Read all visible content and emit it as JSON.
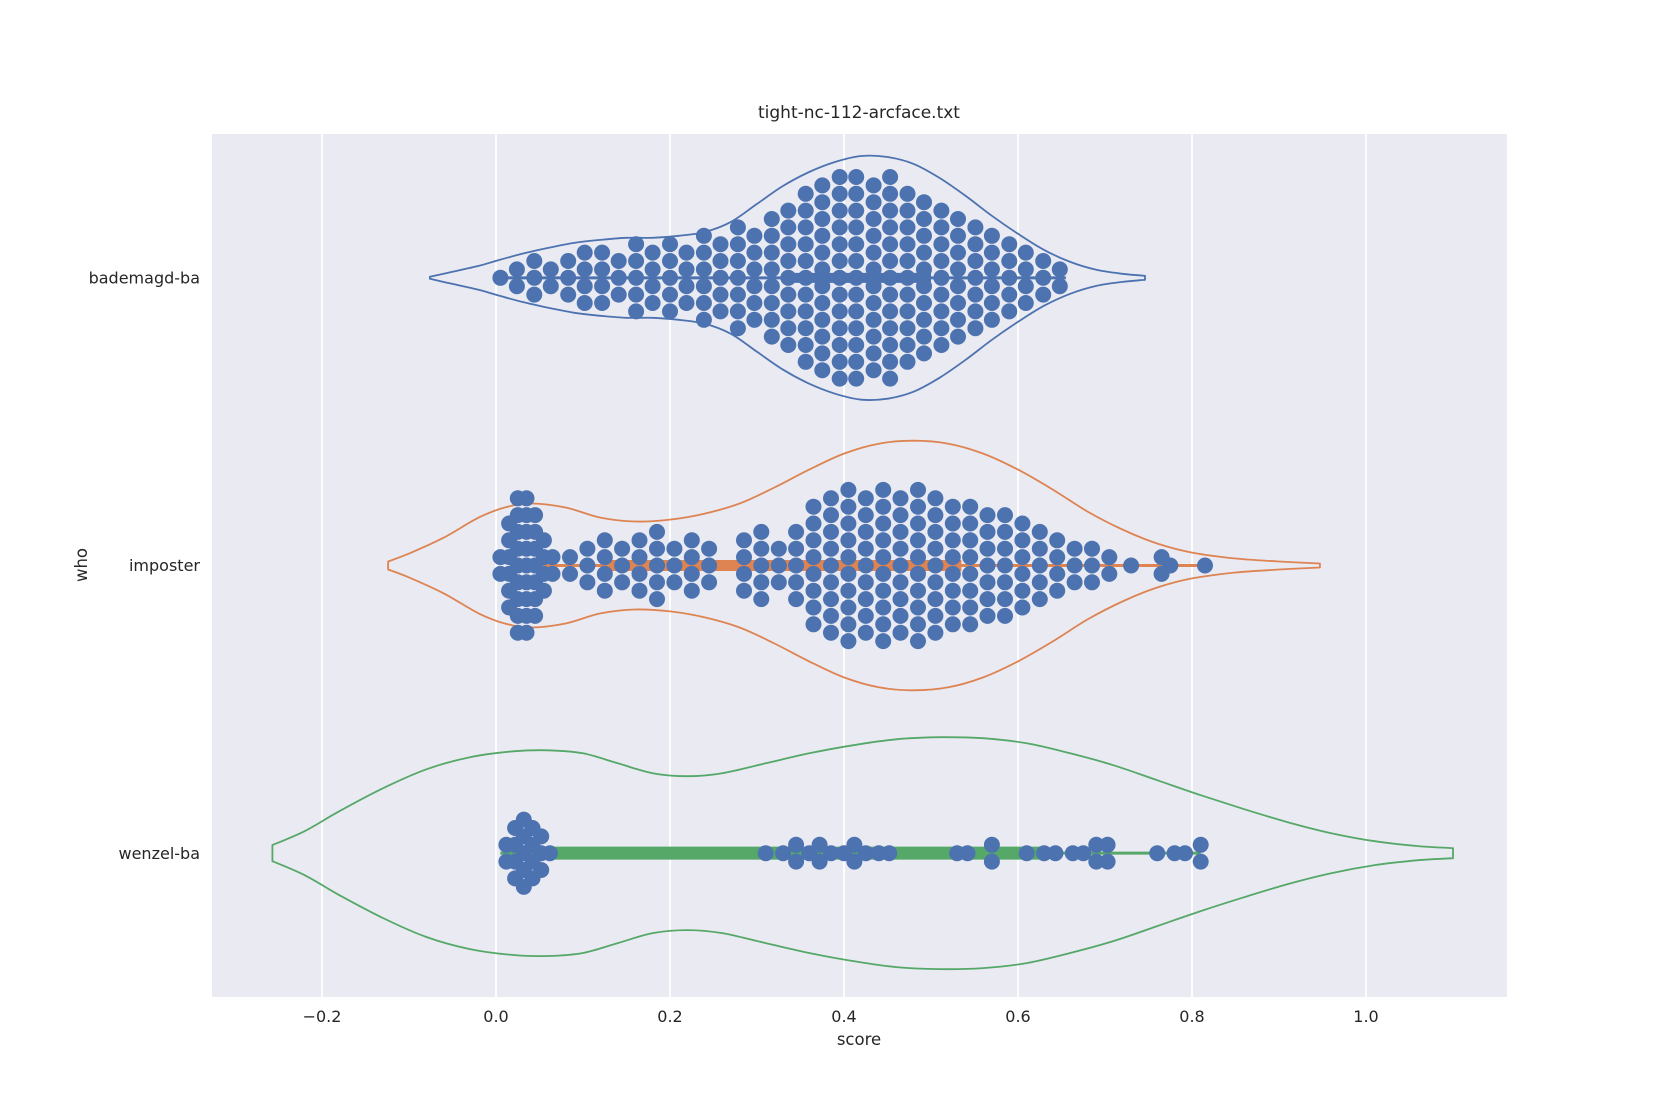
{
  "chart": {
    "title": "tight-nc-112-arcface.txt",
    "xlabel": "score",
    "ylabel": "who",
    "plot_background": "#eaeaf2",
    "grid_color": "#ffffff",
    "text_color": "#262626",
    "point_color": "#4c72b0",
    "categories": [
      "bademagd-ba",
      "imposter",
      "wenzel-ba"
    ],
    "x_ticks": [
      {
        "value": -0.2,
        "label": "−0.2"
      },
      {
        "value": 0.0,
        "label": "0.0"
      },
      {
        "value": 0.2,
        "label": "0.2"
      },
      {
        "value": 0.4,
        "label": "0.4"
      },
      {
        "value": 0.6,
        "label": "0.6"
      },
      {
        "value": 0.8,
        "label": "0.8"
      },
      {
        "value": 1.0,
        "label": "1.0"
      }
    ],
    "xlim": [
      -0.326,
      1.162
    ]
  },
  "chart_data": {
    "type": "violin",
    "overlay": "swarm",
    "orientation": "horizontal",
    "title": "tight-nc-112-arcface.txt",
    "xlabel": "score",
    "ylabel": "who",
    "grid": "vertical-only",
    "series": [
      {
        "name": "bademagd-ba",
        "color": "#4c72b0",
        "violin_range": [
          -0.076,
          0.746
        ],
        "violin_profile": [
          [
            -0.076,
            0.007
          ],
          [
            -0.05,
            0.042
          ],
          [
            -0.02,
            0.083
          ],
          [
            0.0,
            0.118
          ],
          [
            0.03,
            0.167
          ],
          [
            0.06,
            0.208
          ],
          [
            0.09,
            0.243
          ],
          [
            0.12,
            0.264
          ],
          [
            0.15,
            0.278
          ],
          [
            0.18,
            0.278
          ],
          [
            0.21,
            0.292
          ],
          [
            0.24,
            0.319
          ],
          [
            0.27,
            0.389
          ],
          [
            0.3,
            0.514
          ],
          [
            0.33,
            0.639
          ],
          [
            0.36,
            0.736
          ],
          [
            0.39,
            0.806
          ],
          [
            0.42,
            0.847
          ],
          [
            0.45,
            0.84
          ],
          [
            0.48,
            0.792
          ],
          [
            0.51,
            0.694
          ],
          [
            0.54,
            0.569
          ],
          [
            0.57,
            0.431
          ],
          [
            0.6,
            0.306
          ],
          [
            0.63,
            0.194
          ],
          [
            0.66,
            0.111
          ],
          [
            0.69,
            0.056
          ],
          [
            0.72,
            0.028
          ],
          [
            0.746,
            0.014
          ]
        ],
        "box": {
          "q1": 0.33,
          "q3": 0.5,
          "lw": 10
        },
        "whisker": [
          0.005,
          0.655
        ],
        "swarm_columns": [
          [
            0.005,
            1
          ],
          [
            0.024,
            2
          ],
          [
            0.044,
            3
          ],
          [
            0.063,
            2
          ],
          [
            0.083,
            3
          ],
          [
            0.102,
            4
          ],
          [
            0.122,
            4
          ],
          [
            0.141,
            3
          ],
          [
            0.161,
            5
          ],
          [
            0.18,
            4
          ],
          [
            0.2,
            5
          ],
          [
            0.219,
            4
          ],
          [
            0.239,
            6
          ],
          [
            0.258,
            5
          ],
          [
            0.278,
            7
          ],
          [
            0.297,
            6
          ],
          [
            0.317,
            8
          ],
          [
            0.336,
            9
          ],
          [
            0.356,
            11
          ],
          [
            0.375,
            12
          ],
          [
            0.395,
            13
          ],
          [
            0.414,
            13
          ],
          [
            0.434,
            12
          ],
          [
            0.453,
            13
          ],
          [
            0.473,
            11
          ],
          [
            0.492,
            10
          ],
          [
            0.512,
            9
          ],
          [
            0.531,
            8
          ],
          [
            0.551,
            7
          ],
          [
            0.57,
            6
          ],
          [
            0.59,
            5
          ],
          [
            0.609,
            4
          ],
          [
            0.629,
            3
          ],
          [
            0.648,
            2
          ]
        ]
      },
      {
        "name": "imposter",
        "color": "#dd8452",
        "violin_range": [
          -0.124,
          0.947
        ],
        "violin_profile": [
          [
            -0.124,
            0.028
          ],
          [
            -0.1,
            0.083
          ],
          [
            -0.06,
            0.194
          ],
          [
            -0.02,
            0.333
          ],
          [
            0.01,
            0.403
          ],
          [
            0.04,
            0.431
          ],
          [
            0.08,
            0.403
          ],
          [
            0.12,
            0.333
          ],
          [
            0.16,
            0.306
          ],
          [
            0.2,
            0.319
          ],
          [
            0.24,
            0.361
          ],
          [
            0.28,
            0.431
          ],
          [
            0.32,
            0.542
          ],
          [
            0.36,
            0.667
          ],
          [
            0.4,
            0.778
          ],
          [
            0.44,
            0.847
          ],
          [
            0.48,
            0.868
          ],
          [
            0.52,
            0.847
          ],
          [
            0.56,
            0.778
          ],
          [
            0.6,
            0.667
          ],
          [
            0.64,
            0.528
          ],
          [
            0.68,
            0.375
          ],
          [
            0.72,
            0.25
          ],
          [
            0.76,
            0.153
          ],
          [
            0.8,
            0.09
          ],
          [
            0.85,
            0.049
          ],
          [
            0.9,
            0.028
          ],
          [
            0.947,
            0.014
          ]
        ],
        "box": {
          "q1": 0.13,
          "q3": 0.535,
          "lw": 11
        },
        "whisker": [
          0.016,
          0.82
        ],
        "swarm_columns": [
          [
            0.005,
            2
          ],
          [
            0.015,
            6
          ],
          [
            0.025,
            9
          ],
          [
            0.035,
            9
          ],
          [
            0.045,
            7
          ],
          [
            0.055,
            4
          ],
          [
            0.065,
            2
          ],
          [
            0.085,
            2
          ],
          [
            0.105,
            3
          ],
          [
            0.125,
            4
          ],
          [
            0.145,
            3
          ],
          [
            0.165,
            4
          ],
          [
            0.185,
            5
          ],
          [
            0.205,
            3
          ],
          [
            0.225,
            4
          ],
          [
            0.245,
            3
          ],
          [
            0.285,
            4
          ],
          [
            0.305,
            5
          ],
          [
            0.325,
            3
          ],
          [
            0.345,
            5
          ],
          [
            0.365,
            8
          ],
          [
            0.385,
            9
          ],
          [
            0.405,
            10
          ],
          [
            0.425,
            9
          ],
          [
            0.445,
            10
          ],
          [
            0.465,
            9
          ],
          [
            0.485,
            10
          ],
          [
            0.505,
            9
          ],
          [
            0.525,
            8
          ],
          [
            0.545,
            8
          ],
          [
            0.565,
            7
          ],
          [
            0.585,
            7
          ],
          [
            0.605,
            6
          ],
          [
            0.625,
            5
          ],
          [
            0.645,
            4
          ],
          [
            0.665,
            3
          ],
          [
            0.685,
            3
          ],
          [
            0.705,
            2
          ],
          [
            0.73,
            1
          ],
          [
            0.765,
            2
          ],
          [
            0.775,
            1
          ],
          [
            0.815,
            1
          ]
        ]
      },
      {
        "name": "wenzel-ba",
        "color": "#55a868",
        "violin_range": [
          -0.257,
          1.1
        ],
        "violin_profile": [
          [
            -0.257,
            0.056
          ],
          [
            -0.22,
            0.153
          ],
          [
            -0.18,
            0.292
          ],
          [
            -0.13,
            0.451
          ],
          [
            -0.08,
            0.583
          ],
          [
            -0.03,
            0.667
          ],
          [
            0.02,
            0.708
          ],
          [
            0.06,
            0.715
          ],
          [
            0.1,
            0.694
          ],
          [
            0.14,
            0.625
          ],
          [
            0.18,
            0.556
          ],
          [
            0.22,
            0.535
          ],
          [
            0.26,
            0.556
          ],
          [
            0.31,
            0.625
          ],
          [
            0.36,
            0.694
          ],
          [
            0.41,
            0.75
          ],
          [
            0.46,
            0.792
          ],
          [
            0.51,
            0.806
          ],
          [
            0.56,
            0.799
          ],
          [
            0.61,
            0.764
          ],
          [
            0.66,
            0.694
          ],
          [
            0.71,
            0.611
          ],
          [
            0.76,
            0.507
          ],
          [
            0.81,
            0.403
          ],
          [
            0.86,
            0.306
          ],
          [
            0.91,
            0.215
          ],
          [
            0.96,
            0.139
          ],
          [
            1.01,
            0.083
          ],
          [
            1.06,
            0.049
          ],
          [
            1.1,
            0.035
          ]
        ],
        "box": {
          "q1": 0.036,
          "q3": 0.63,
          "lw": 13
        },
        "whisker": [
          0.005,
          0.81
        ],
        "swarm_columns": [
          [
            0.012,
            2
          ],
          [
            0.022,
            4
          ],
          [
            0.032,
            5
          ],
          [
            0.042,
            4
          ],
          [
            0.052,
            3
          ],
          [
            0.062,
            1
          ],
          [
            0.31,
            1
          ],
          [
            0.33,
            1
          ],
          [
            0.345,
            2
          ],
          [
            0.36,
            1
          ],
          [
            0.372,
            2
          ],
          [
            0.385,
            1
          ],
          [
            0.4,
            1
          ],
          [
            0.412,
            2
          ],
          [
            0.425,
            1
          ],
          [
            0.44,
            1
          ],
          [
            0.452,
            1
          ],
          [
            0.53,
            1
          ],
          [
            0.542,
            1
          ],
          [
            0.57,
            2
          ],
          [
            0.61,
            1
          ],
          [
            0.63,
            1
          ],
          [
            0.643,
            1
          ],
          [
            0.663,
            1
          ],
          [
            0.675,
            1
          ],
          [
            0.69,
            2
          ],
          [
            0.703,
            2
          ],
          [
            0.76,
            1
          ],
          [
            0.78,
            1
          ],
          [
            0.792,
            1
          ],
          [
            0.81,
            2
          ]
        ]
      }
    ]
  }
}
